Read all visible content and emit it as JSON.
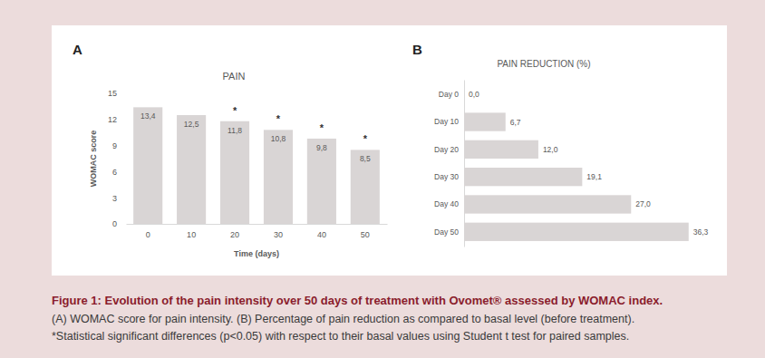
{
  "figure": {
    "caption_title": "Figure 1: Evolution of the pain intensity over 50 days of treatment with Ovomet® assessed by WOMAC index.",
    "caption_lines": [
      "(A) WOMAC score for pain intensity. (B) Percentage of pain reduction as compared to basal level (before treatment).",
      "*Statistical significant differences (p<0.05) with respect to their basal values using Student t test for paired samples."
    ]
  },
  "chart_data": [
    {
      "panel": "A",
      "type": "bar",
      "title": "PAIN",
      "x_label": "Time (days)",
      "y_label": "WOMAC score",
      "categories": [
        "0",
        "10",
        "20",
        "30",
        "40",
        "50"
      ],
      "values": [
        13.4,
        12.5,
        11.8,
        10.8,
        9.8,
        8.5
      ],
      "value_labels": [
        "13,4",
        "12,5",
        "11,8",
        "10,8",
        "9,8",
        "8,5"
      ],
      "color": "#d9d5d5",
      "ylim": [
        0,
        15
      ],
      "yticks": [
        0,
        3,
        6,
        9,
        12,
        15
      ],
      "grid": false,
      "data_labels": true,
      "annotations": [
        {
          "text": "*",
          "x": "20"
        },
        {
          "text": "*",
          "x": "30"
        },
        {
          "text": "*",
          "x": "40"
        },
        {
          "text": "*",
          "x": "50"
        }
      ]
    },
    {
      "panel": "B",
      "type": "bar",
      "orientation": "horizontal",
      "title": "PAIN REDUCTION (%)",
      "categories": [
        "Day 0",
        "Day 10",
        "Day 20",
        "Day 30",
        "Day 40",
        "Day 50"
      ],
      "values": [
        0.0,
        6.7,
        12.0,
        19.1,
        27.0,
        36.3
      ],
      "value_labels": [
        "0,0",
        "6,7",
        "12,0",
        "19,1",
        "27,0",
        "36,3"
      ],
      "color": "#d9d5d5",
      "xlim": [
        0,
        40
      ],
      "grid": false,
      "data_labels": true,
      "tick_labels": "y"
    }
  ]
}
